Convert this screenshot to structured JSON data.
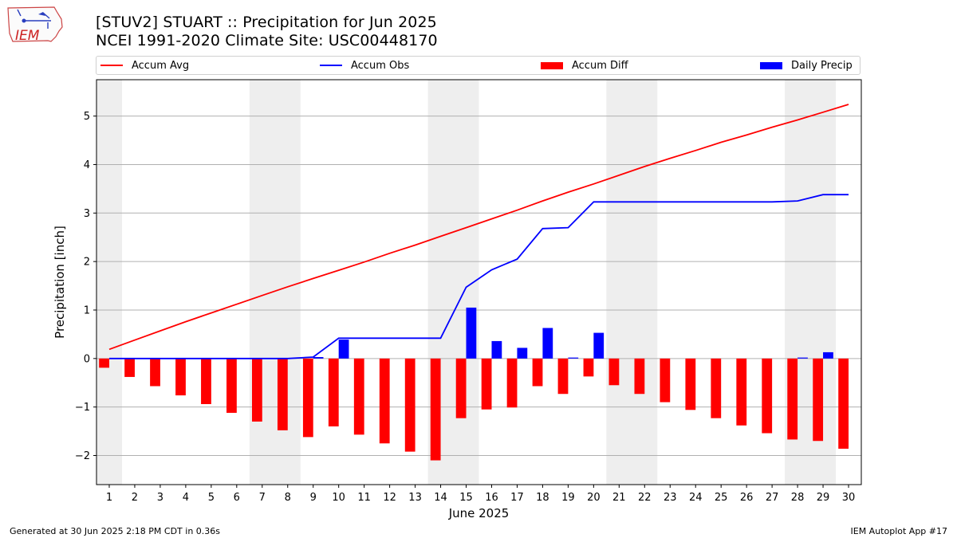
{
  "header": {
    "title_line1": "[STUV2] STUART :: Precipitation for Jun 2025",
    "title_line2": "NCEI 1991-2020 Climate Site: USC00448170",
    "logo_text": "IEM"
  },
  "legend": {
    "items": [
      {
        "label": "Accum Avg",
        "kind": "line",
        "color": "#ff0000"
      },
      {
        "label": "Accum Obs",
        "kind": "line",
        "color": "#0000ff"
      },
      {
        "label": "Accum Diff",
        "kind": "patch",
        "color": "#ff0000"
      },
      {
        "label": "Daily Precip",
        "kind": "patch",
        "color": "#0000ff"
      }
    ]
  },
  "footer": {
    "left": "Generated at 30 Jun 2025 2:18 PM CDT in 0.36s",
    "right": "IEM Autoplot App #17"
  },
  "chart_data": {
    "type": "bar",
    "title": "[STUV2] STUART :: Precipitation for Jun 2025",
    "subtitle": "NCEI 1991-2020 Climate Site: USC00448170",
    "xlabel": "June 2025",
    "ylabel": "Precipitation [inch]",
    "x": [
      1,
      2,
      3,
      4,
      5,
      6,
      7,
      8,
      9,
      10,
      11,
      12,
      13,
      14,
      15,
      16,
      17,
      18,
      19,
      20,
      21,
      22,
      23,
      24,
      25,
      26,
      27,
      28,
      29,
      30
    ],
    "xlim": [
      0.5,
      30.5
    ],
    "ylim": [
      -2.6,
      5.75
    ],
    "yticks": [
      -2,
      -1,
      0,
      1,
      2,
      3,
      4,
      5
    ],
    "yticklabels": [
      "−2",
      "−1",
      "0",
      "1",
      "2",
      "3",
      "4",
      "5"
    ],
    "grid": "horizontal",
    "legend_position": "top",
    "weekend_shading": [
      [
        0.5,
        1.5
      ],
      [
        6.5,
        8.5
      ],
      [
        13.5,
        15.5
      ],
      [
        20.5,
        22.5
      ],
      [
        27.5,
        29.5
      ]
    ],
    "series": [
      {
        "name": "Accum Avg",
        "kind": "line",
        "color": "#ff0000",
        "values": [
          0.19,
          0.38,
          0.57,
          0.76,
          0.94,
          1.12,
          1.3,
          1.48,
          1.65,
          1.82,
          1.99,
          2.17,
          2.34,
          2.52,
          2.7,
          2.88,
          3.06,
          3.25,
          3.43,
          3.6,
          3.78,
          3.96,
          4.13,
          4.29,
          4.46,
          4.61,
          4.77,
          4.92,
          5.08,
          5.24
        ]
      },
      {
        "name": "Accum Obs",
        "kind": "line",
        "color": "#0000ff",
        "values": [
          0.0,
          0.0,
          0.0,
          0.0,
          0.0,
          0.0,
          0.0,
          0.0,
          0.03,
          0.42,
          0.42,
          0.42,
          0.42,
          0.42,
          1.47,
          1.83,
          2.05,
          2.68,
          2.7,
          3.23,
          3.23,
          3.23,
          3.23,
          3.23,
          3.23,
          3.23,
          3.23,
          3.25,
          3.38,
          3.38
        ]
      },
      {
        "name": "Accum Diff",
        "kind": "bar",
        "color": "#ff0000",
        "values": [
          -0.19,
          -0.38,
          -0.57,
          -0.76,
          -0.94,
          -1.12,
          -1.3,
          -1.48,
          -1.62,
          -1.4,
          -1.57,
          -1.75,
          -1.92,
          -2.1,
          -1.23,
          -1.05,
          -1.01,
          -0.57,
          -0.73,
          -0.37,
          -0.55,
          -0.73,
          -0.9,
          -1.06,
          -1.23,
          -1.38,
          -1.54,
          -1.67,
          -1.7,
          -1.86
        ]
      },
      {
        "name": "Daily Precip",
        "kind": "bar",
        "color": "#0000ff",
        "values": [
          0,
          0,
          0,
          0,
          0,
          0,
          0,
          0,
          0.03,
          0.39,
          0,
          0,
          0,
          0,
          1.05,
          0.36,
          0.22,
          0.63,
          0.02,
          0.53,
          0,
          0,
          0,
          0,
          0,
          0,
          0,
          0.02,
          0.13,
          0
        ]
      }
    ]
  }
}
